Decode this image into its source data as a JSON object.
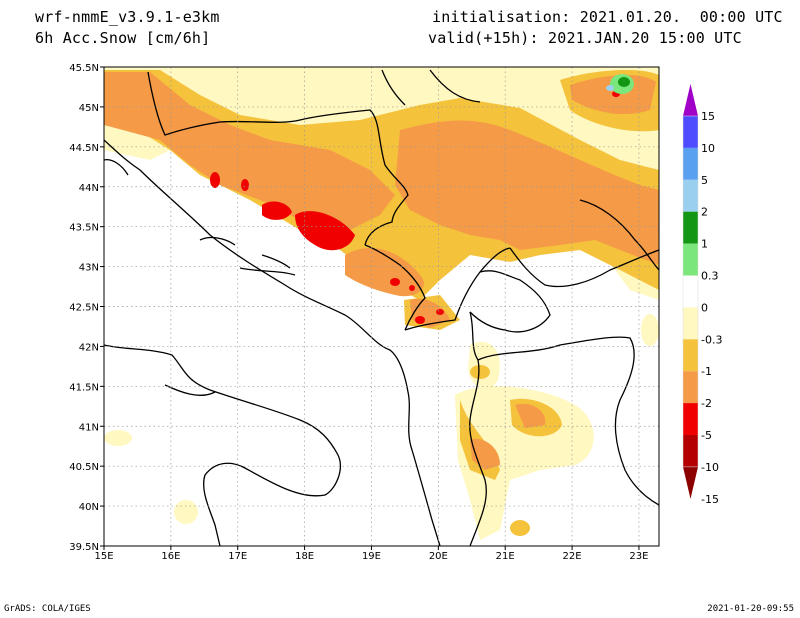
{
  "header": {
    "model": "wrf-nmmE_v3.9.1-e3km",
    "field": "6h Acc.Snow [cm/6h]",
    "initialisation": "initialisation: 2021.01.20.  00:00 UTC",
    "valid": "valid(+15h): 2021.JAN.20 15:00 UTC"
  },
  "map": {
    "lon_range": [
      15,
      23.3
    ],
    "lat_range": [
      39.5,
      45.5
    ],
    "lon_ticks": [
      "15E",
      "16E",
      "17E",
      "18E",
      "19E",
      "20E",
      "21E",
      "22E",
      "23E"
    ],
    "lat_ticks": [
      "39.5N",
      "40N",
      "40.5N",
      "41N",
      "41.5N",
      "42N",
      "42.5N",
      "43N",
      "43.5N",
      "44N",
      "44.5N",
      "45N",
      "45.5N"
    ],
    "gridlines": true
  },
  "colorbar": {
    "labels": [
      "15",
      "10",
      "5",
      "2",
      "1",
      "0.3",
      "0",
      "-0.3",
      "-1",
      "-2",
      "-5",
      "-10",
      "-15"
    ],
    "colors": [
      "#a000c8",
      "#4d4dff",
      "#5aa0f0",
      "#9acff0",
      "#139613",
      "#7be67b",
      "#ffffff",
      "#fff8c0",
      "#f5c23c",
      "#f59a46",
      "#f00000",
      "#b40000",
      "#8c0000"
    ]
  },
  "footer": {
    "left": "GrADS: COLA/IGES",
    "right": "2021-01-20-09:55"
  }
}
